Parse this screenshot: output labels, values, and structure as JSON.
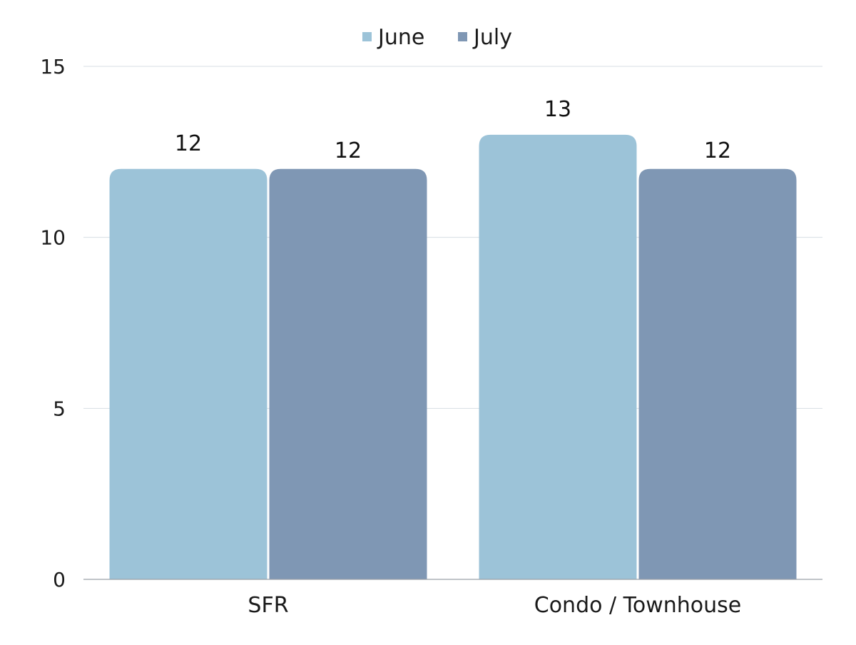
{
  "chart_data": {
    "type": "bar",
    "categories": [
      "SFR",
      "Condo / Townhouse"
    ],
    "series": [
      {
        "name": "June",
        "values": [
          12,
          13
        ],
        "color": "#9cc3d8"
      },
      {
        "name": "July",
        "values": [
          12,
          12
        ],
        "color": "#7f97b4"
      }
    ],
    "ylim": [
      0,
      15
    ],
    "yticks": [
      0,
      5,
      10,
      15
    ],
    "title": "",
    "xlabel": "",
    "ylabel": "",
    "grid": true,
    "legend": "top-center",
    "data_labels": true
  }
}
